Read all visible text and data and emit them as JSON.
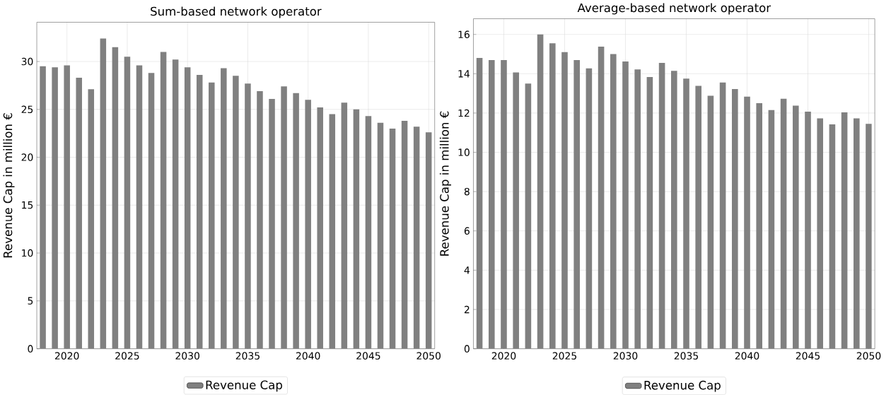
{
  "chart_data": [
    {
      "type": "bar",
      "title": "Sum-based network operator",
      "ylabel": "Revenue Cap in million €",
      "x": [
        2018,
        2019,
        2020,
        2021,
        2022,
        2023,
        2024,
        2025,
        2026,
        2027,
        2028,
        2029,
        2030,
        2031,
        2032,
        2033,
        2034,
        2035,
        2036,
        2037,
        2038,
        2039,
        2040,
        2041,
        2042,
        2043,
        2044,
        2045,
        2046,
        2047,
        2048,
        2049,
        2050
      ],
      "series": [
        {
          "name": "Revenue Cap",
          "color": "#808080",
          "values": [
            29.5,
            29.4,
            29.6,
            28.3,
            27.1,
            32.4,
            31.5,
            30.5,
            29.6,
            28.8,
            31.0,
            30.2,
            29.4,
            28.6,
            27.8,
            29.3,
            28.5,
            27.7,
            26.9,
            26.1,
            27.4,
            26.7,
            26.0,
            25.2,
            24.5,
            25.7,
            25.0,
            24.3,
            23.6,
            23.0,
            23.8,
            23.2,
            22.6
          ]
        }
      ],
      "xlim": [
        2017.5,
        2050.5
      ],
      "xticks": [
        2020,
        2025,
        2030,
        2035,
        2040,
        2045,
        2050
      ],
      "ylim": [
        0,
        34.1
      ],
      "yticks": [
        0,
        5,
        10,
        15,
        20,
        25,
        30
      ],
      "grid": true,
      "legend": "bottom"
    },
    {
      "type": "bar",
      "title": "Average-based network operator",
      "ylabel": "Revenue Cap in million €",
      "x": [
        2018,
        2019,
        2020,
        2021,
        2022,
        2023,
        2024,
        2025,
        2026,
        2027,
        2028,
        2029,
        2030,
        2031,
        2032,
        2033,
        2034,
        2035,
        2036,
        2037,
        2038,
        2039,
        2040,
        2041,
        2042,
        2043,
        2044,
        2045,
        2046,
        2047,
        2048,
        2049,
        2050
      ],
      "series": [
        {
          "name": "Revenue Cap",
          "color": "#808080",
          "values": [
            14.8,
            14.7,
            14.7,
            14.07,
            13.5,
            16.0,
            15.55,
            15.1,
            14.7,
            14.27,
            15.38,
            15.0,
            14.62,
            14.22,
            13.83,
            14.55,
            14.15,
            13.75,
            13.38,
            12.88,
            13.55,
            13.22,
            12.83,
            12.5,
            12.15,
            12.73,
            12.38,
            12.07,
            11.73,
            11.42,
            12.03,
            11.73,
            11.45
          ]
        }
      ],
      "xlim": [
        2017.5,
        2050.5
      ],
      "xticks": [
        2020,
        2025,
        2030,
        2035,
        2040,
        2045,
        2050
      ],
      "ylim": [
        0,
        16.8
      ],
      "yticks": [
        0,
        2,
        4,
        6,
        8,
        10,
        12,
        14,
        16
      ],
      "grid": true,
      "legend": "bottom"
    }
  ]
}
